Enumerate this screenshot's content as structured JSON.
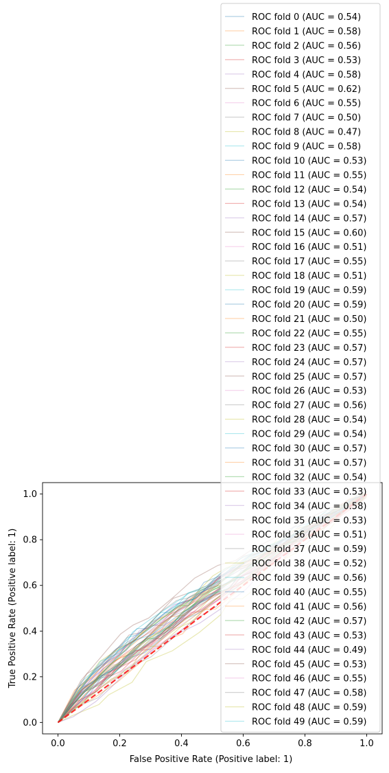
{
  "chart_data": {
    "type": "line",
    "xlabel": "False Positive Rate (Positive label: 1)",
    "ylabel": "True Positive Rate (Positive label: 1)",
    "xlim": [
      -0.05,
      1.05
    ],
    "ylim": [
      -0.05,
      1.05
    ],
    "xticks": [
      "0.0",
      "0.2",
      "0.4",
      "0.6",
      "0.8",
      "1.0"
    ],
    "yticks": [
      "0.0",
      "0.2",
      "0.4",
      "0.6",
      "0.8",
      "1.0"
    ],
    "grid": false,
    "legend_position": "upper-right",
    "chance_line": {
      "x": [
        0,
        1
      ],
      "y": [
        0,
        1
      ],
      "color": "#ff0000",
      "style": "dashed"
    },
    "series": [
      {
        "name": "ROC fold 0 (AUC = 0.54)",
        "color": "#1f77b4",
        "auc": 0.54
      },
      {
        "name": "ROC fold 1 (AUC = 0.58)",
        "color": "#ff7f0e",
        "auc": 0.58
      },
      {
        "name": "ROC fold 2 (AUC = 0.56)",
        "color": "#2ca02c",
        "auc": 0.56
      },
      {
        "name": "ROC fold 3 (AUC = 0.53)",
        "color": "#d62728",
        "auc": 0.53
      },
      {
        "name": "ROC fold 4 (AUC = 0.58)",
        "color": "#9467bd",
        "auc": 0.58
      },
      {
        "name": "ROC fold 5 (AUC = 0.62)",
        "color": "#8c564b",
        "auc": 0.62
      },
      {
        "name": "ROC fold 6 (AUC = 0.55)",
        "color": "#e377c2",
        "auc": 0.55
      },
      {
        "name": "ROC fold 7 (AUC = 0.50)",
        "color": "#7f7f7f",
        "auc": 0.5
      },
      {
        "name": "ROC fold 8 (AUC = 0.47)",
        "color": "#bcbd22",
        "auc": 0.47
      },
      {
        "name": "ROC fold 9 (AUC = 0.58)",
        "color": "#17becf",
        "auc": 0.58
      },
      {
        "name": "ROC fold 10 (AUC = 0.53)",
        "color": "#1f77b4",
        "auc": 0.53
      },
      {
        "name": "ROC fold 11 (AUC = 0.55)",
        "color": "#ff7f0e",
        "auc": 0.55
      },
      {
        "name": "ROC fold 12 (AUC = 0.54)",
        "color": "#2ca02c",
        "auc": 0.54
      },
      {
        "name": "ROC fold 13 (AUC = 0.54)",
        "color": "#d62728",
        "auc": 0.54
      },
      {
        "name": "ROC fold 14 (AUC = 0.57)",
        "color": "#9467bd",
        "auc": 0.57
      },
      {
        "name": "ROC fold 15 (AUC = 0.60)",
        "color": "#8c564b",
        "auc": 0.6
      },
      {
        "name": "ROC fold 16 (AUC = 0.51)",
        "color": "#e377c2",
        "auc": 0.51
      },
      {
        "name": "ROC fold 17 (AUC = 0.55)",
        "color": "#7f7f7f",
        "auc": 0.55
      },
      {
        "name": "ROC fold 18 (AUC = 0.51)",
        "color": "#bcbd22",
        "auc": 0.51
      },
      {
        "name": "ROC fold 19 (AUC = 0.59)",
        "color": "#17becf",
        "auc": 0.59
      },
      {
        "name": "ROC fold 20 (AUC = 0.59)",
        "color": "#1f77b4",
        "auc": 0.59
      },
      {
        "name": "ROC fold 21 (AUC = 0.50)",
        "color": "#ff7f0e",
        "auc": 0.5
      },
      {
        "name": "ROC fold 22 (AUC = 0.55)",
        "color": "#2ca02c",
        "auc": 0.55
      },
      {
        "name": "ROC fold 23 (AUC = 0.57)",
        "color": "#d62728",
        "auc": 0.57
      },
      {
        "name": "ROC fold 24 (AUC = 0.57)",
        "color": "#9467bd",
        "auc": 0.57
      },
      {
        "name": "ROC fold 25 (AUC = 0.57)",
        "color": "#8c564b",
        "auc": 0.57
      },
      {
        "name": "ROC fold 26 (AUC = 0.53)",
        "color": "#e377c2",
        "auc": 0.53
      },
      {
        "name": "ROC fold 27 (AUC = 0.56)",
        "color": "#7f7f7f",
        "auc": 0.56
      },
      {
        "name": "ROC fold 28 (AUC = 0.54)",
        "color": "#bcbd22",
        "auc": 0.54
      },
      {
        "name": "ROC fold 29 (AUC = 0.54)",
        "color": "#17becf",
        "auc": 0.54
      },
      {
        "name": "ROC fold 30 (AUC = 0.57)",
        "color": "#1f77b4",
        "auc": 0.57
      },
      {
        "name": "ROC fold 31 (AUC = 0.57)",
        "color": "#ff7f0e",
        "auc": 0.57
      },
      {
        "name": "ROC fold 32 (AUC = 0.54)",
        "color": "#2ca02c",
        "auc": 0.54
      },
      {
        "name": "ROC fold 33 (AUC = 0.53)",
        "color": "#d62728",
        "auc": 0.53
      },
      {
        "name": "ROC fold 34 (AUC = 0.58)",
        "color": "#9467bd",
        "auc": 0.58
      },
      {
        "name": "ROC fold 35 (AUC = 0.53)",
        "color": "#8c564b",
        "auc": 0.53
      },
      {
        "name": "ROC fold 36 (AUC = 0.51)",
        "color": "#e377c2",
        "auc": 0.51
      },
      {
        "name": "ROC fold 37 (AUC = 0.59)",
        "color": "#7f7f7f",
        "auc": 0.59
      },
      {
        "name": "ROC fold 38 (AUC = 0.52)",
        "color": "#bcbd22",
        "auc": 0.52
      },
      {
        "name": "ROC fold 39 (AUC = 0.56)",
        "color": "#17becf",
        "auc": 0.56
      },
      {
        "name": "ROC fold 40 (AUC = 0.55)",
        "color": "#1f77b4",
        "auc": 0.55
      },
      {
        "name": "ROC fold 41 (AUC = 0.56)",
        "color": "#ff7f0e",
        "auc": 0.56
      },
      {
        "name": "ROC fold 42 (AUC = 0.57)",
        "color": "#2ca02c",
        "auc": 0.57
      },
      {
        "name": "ROC fold 43 (AUC = 0.53)",
        "color": "#d62728",
        "auc": 0.53
      },
      {
        "name": "ROC fold 44 (AUC = 0.49)",
        "color": "#9467bd",
        "auc": 0.49
      },
      {
        "name": "ROC fold 45 (AUC = 0.53)",
        "color": "#8c564b",
        "auc": 0.53
      },
      {
        "name": "ROC fold 46 (AUC = 0.55)",
        "color": "#e377c2",
        "auc": 0.55
      },
      {
        "name": "ROC fold 47 (AUC = 0.58)",
        "color": "#7f7f7f",
        "auc": 0.58
      },
      {
        "name": "ROC fold 48 (AUC = 0.59)",
        "color": "#bcbd22",
        "auc": 0.59
      },
      {
        "name": "ROC fold 49 (AUC = 0.59)",
        "color": "#17becf",
        "auc": 0.59
      }
    ]
  }
}
